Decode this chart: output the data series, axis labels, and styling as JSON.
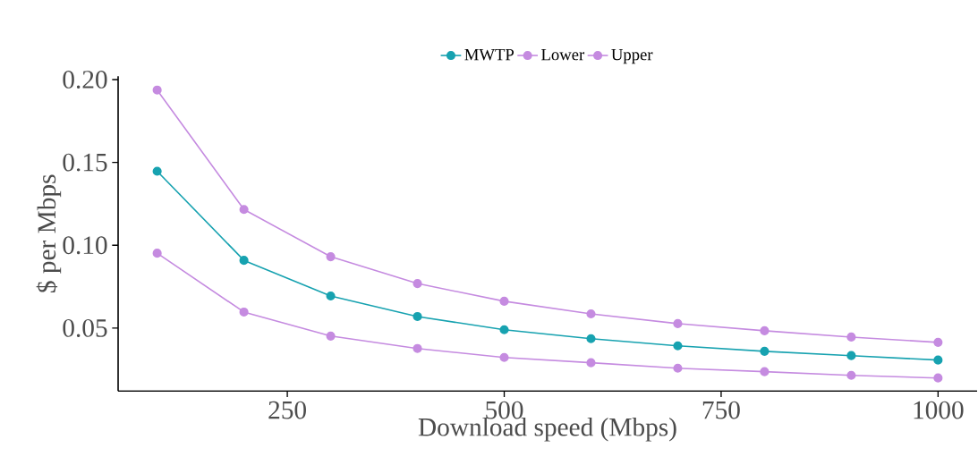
{
  "chart_data": {
    "type": "line",
    "xlabel": "Download speed (Mbps)",
    "ylabel": "$ per Mbps",
    "x": [
      100,
      200,
      300,
      400,
      500,
      600,
      700,
      800,
      900,
      1000
    ],
    "series": [
      {
        "name": "MWTP",
        "color": "#17a2b0",
        "values": [
          0.1447,
          0.0909,
          0.0694,
          0.057,
          0.049,
          0.0436,
          0.0393,
          0.036,
          0.0334,
          0.0307
        ]
      },
      {
        "name": "Lower",
        "color": "#c58be0",
        "values": [
          0.0952,
          0.0597,
          0.0452,
          0.0377,
          0.0323,
          0.0291,
          0.0258,
          0.0237,
          0.0215,
          0.0199
        ]
      },
      {
        "name": "Upper",
        "color": "#c58be0",
        "values": [
          0.1937,
          0.1216,
          0.0931,
          0.0769,
          0.0662,
          0.0586,
          0.0527,
          0.0484,
          0.0446,
          0.0414
        ]
      }
    ],
    "xlim": [
      55,
      1045
    ],
    "ylim": [
      0.012,
      0.202
    ],
    "xticks": [
      250,
      500,
      750,
      1000
    ],
    "yticks": [
      {
        "value": 0.05,
        "label": "0.05"
      },
      {
        "value": 0.1,
        "label": "0.10"
      },
      {
        "value": 0.15,
        "label": "0.15"
      },
      {
        "value": 0.2,
        "label": "0.20"
      }
    ],
    "grid": false,
    "legend": "top",
    "marker": "circle",
    "line_style": "solid"
  }
}
